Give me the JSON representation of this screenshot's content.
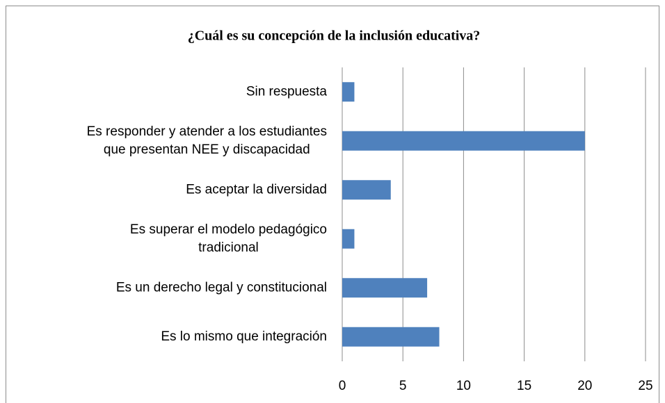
{
  "chart_data": {
    "type": "barh",
    "title": "¿Cuál es su concepción de la inclusión educativa?",
    "categories": [
      "Sin respuesta",
      "Es responder y atender a los estudiantes\nque presentan NEE y discapacidad",
      "Es aceptar la diversidad",
      "Es superar el modelo pedagógico\ntradicional",
      "Es un derecho legal y constitucional",
      "Es lo mismo que integración"
    ],
    "values": [
      1,
      20,
      4,
      1,
      7,
      8
    ],
    "color": "#4f81bd",
    "xlim": [
      0,
      25
    ],
    "xticks": [
      0,
      5,
      10,
      15,
      20,
      25
    ],
    "grid": true
  }
}
